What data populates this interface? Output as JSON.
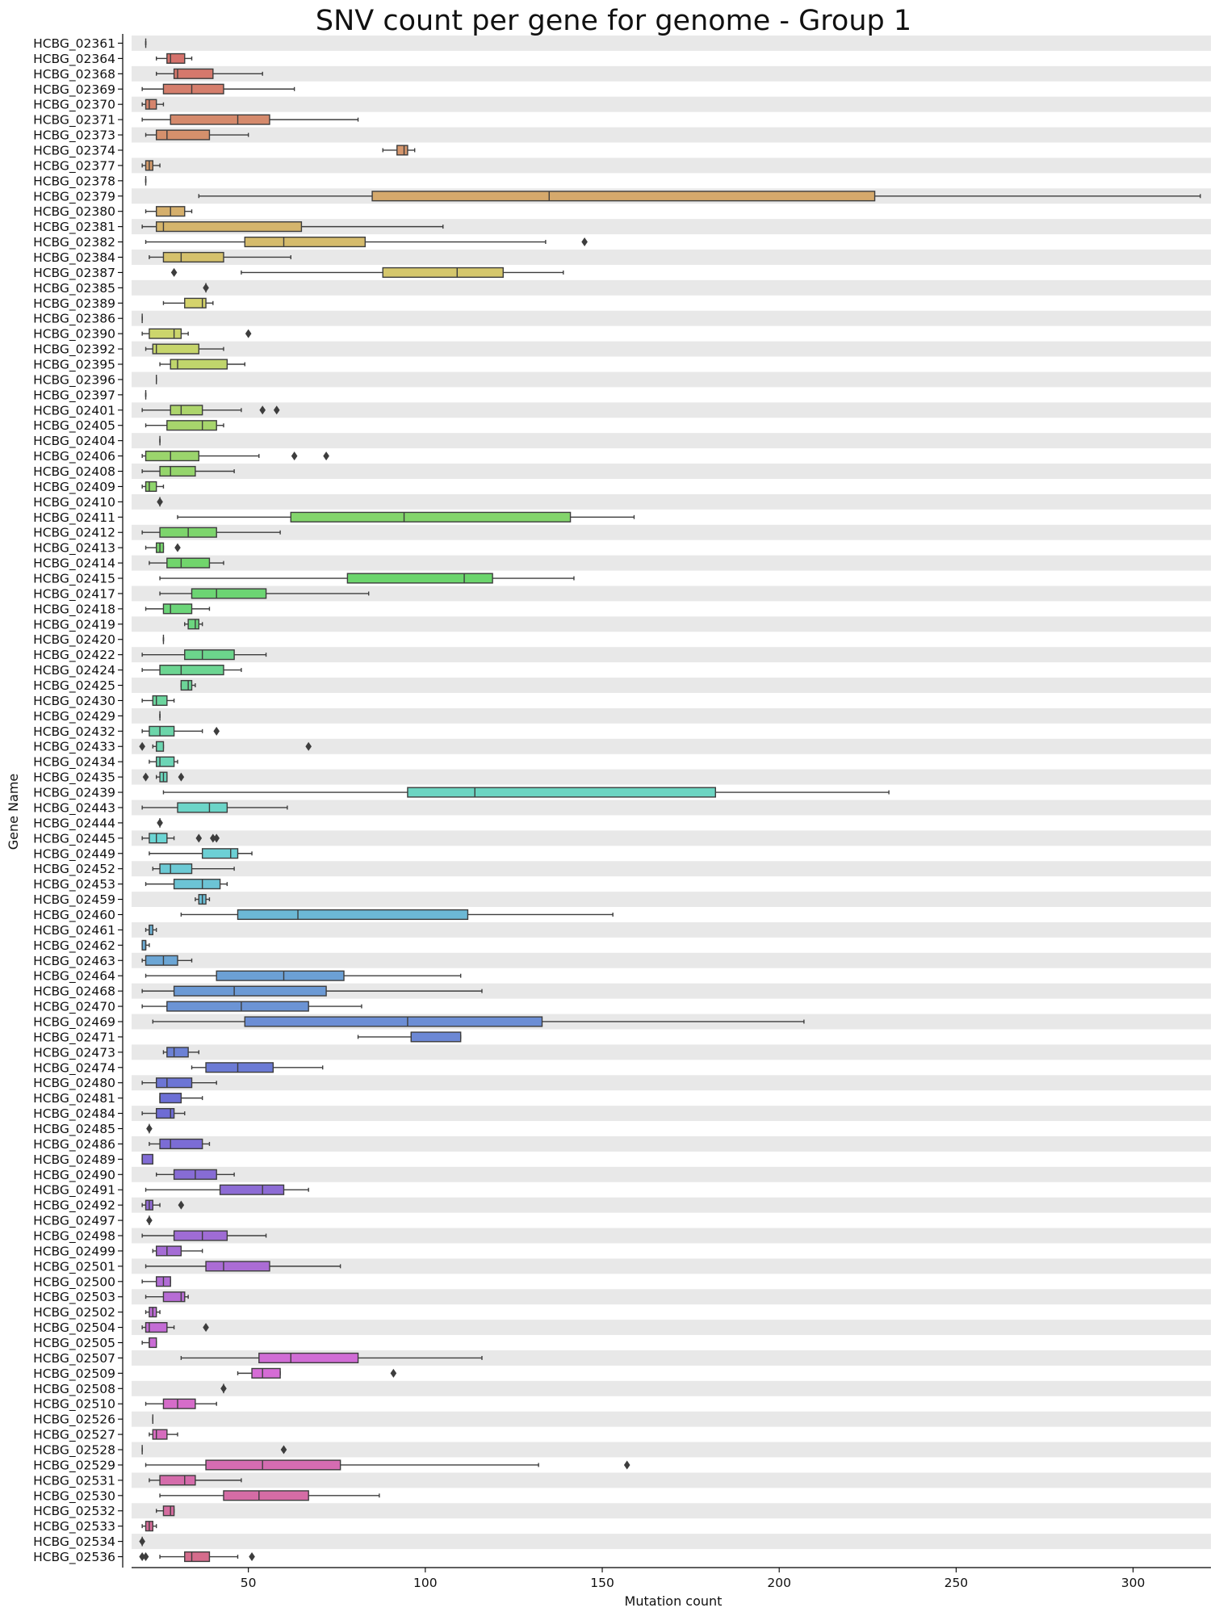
{
  "chart_data": {
    "type": "box",
    "orientation": "horizontal",
    "title": "SNV count per gene for genome - Group 1",
    "xlabel": "Mutation count",
    "ylabel": "Gene Name",
    "xlim": [
      17,
      322
    ],
    "xticks": [
      50,
      100,
      150,
      200,
      250,
      300
    ],
    "grid": false,
    "row_banding": true,
    "categories": [
      {
        "name": "HCBG_02361",
        "wl": 21,
        "q1": 21,
        "med": 21,
        "q3": 21,
        "wh": 21,
        "fliers": []
      },
      {
        "name": "HCBG_02364",
        "wl": 24,
        "q1": 27,
        "med": 28,
        "q3": 32,
        "wh": 34,
        "fliers": []
      },
      {
        "name": "HCBG_02368",
        "wl": 24,
        "q1": 29,
        "med": 30,
        "q3": 40,
        "wh": 54,
        "fliers": []
      },
      {
        "name": "HCBG_02369",
        "wl": 20,
        "q1": 26,
        "med": 34,
        "q3": 43,
        "wh": 63,
        "fliers": []
      },
      {
        "name": "HCBG_02370",
        "wl": 20,
        "q1": 21,
        "med": 22,
        "q3": 24,
        "wh": 26,
        "fliers": []
      },
      {
        "name": "HCBG_02371",
        "wl": 20,
        "q1": 28,
        "med": 47,
        "q3": 56,
        "wh": 81,
        "fliers": []
      },
      {
        "name": "HCBG_02373",
        "wl": 21,
        "q1": 24,
        "med": 27,
        "q3": 39,
        "wh": 50,
        "fliers": []
      },
      {
        "name": "HCBG_02374",
        "wl": 88,
        "q1": 92,
        "med": 94,
        "q3": 95,
        "wh": 97,
        "fliers": []
      },
      {
        "name": "HCBG_02377",
        "wl": 20,
        "q1": 21,
        "med": 22,
        "q3": 23,
        "wh": 25,
        "fliers": []
      },
      {
        "name": "HCBG_02378",
        "wl": 21,
        "q1": 21,
        "med": 21,
        "q3": 21,
        "wh": 21,
        "fliers": []
      },
      {
        "name": "HCBG_02379",
        "wl": 36,
        "q1": 85,
        "med": 135,
        "q3": 227,
        "wh": 319,
        "fliers": []
      },
      {
        "name": "HCBG_02380",
        "wl": 21,
        "q1": 24,
        "med": 28,
        "q3": 32,
        "wh": 34,
        "fliers": []
      },
      {
        "name": "HCBG_02381",
        "wl": 20,
        "q1": 24,
        "med": 26,
        "q3": 65,
        "wh": 105,
        "fliers": []
      },
      {
        "name": "HCBG_02382",
        "wl": 21,
        "q1": 49,
        "med": 60,
        "q3": 83,
        "wh": 134,
        "fliers": [
          145
        ]
      },
      {
        "name": "HCBG_02384",
        "wl": 22,
        "q1": 26,
        "med": 31,
        "q3": 43,
        "wh": 62,
        "fliers": []
      },
      {
        "name": "HCBG_02387",
        "wl": 48,
        "q1": 88,
        "med": 109,
        "q3": 122,
        "wh": 139,
        "fliers": [
          29
        ]
      },
      {
        "name": "HCBG_02385",
        "wl": 38,
        "q1": 38,
        "med": 38,
        "q3": 38,
        "wh": 38,
        "fliers": [
          38
        ]
      },
      {
        "name": "HCBG_02389",
        "wl": 26,
        "q1": 32,
        "med": 37,
        "q3": 38,
        "wh": 40,
        "fliers": []
      },
      {
        "name": "HCBG_02386",
        "wl": 20,
        "q1": 20,
        "med": 20,
        "q3": 20,
        "wh": 20,
        "fliers": []
      },
      {
        "name": "HCBG_02390",
        "wl": 20,
        "q1": 22,
        "med": 29,
        "q3": 31,
        "wh": 33,
        "fliers": [
          50
        ]
      },
      {
        "name": "HCBG_02392",
        "wl": 21,
        "q1": 23,
        "med": 24,
        "q3": 36,
        "wh": 43,
        "fliers": []
      },
      {
        "name": "HCBG_02395",
        "wl": 25,
        "q1": 28,
        "med": 30,
        "q3": 44,
        "wh": 49,
        "fliers": []
      },
      {
        "name": "HCBG_02396",
        "wl": 24,
        "q1": 24,
        "med": 24,
        "q3": 24,
        "wh": 24,
        "fliers": []
      },
      {
        "name": "HCBG_02397",
        "wl": 21,
        "q1": 21,
        "med": 21,
        "q3": 21,
        "wh": 21,
        "fliers": []
      },
      {
        "name": "HCBG_02401",
        "wl": 20,
        "q1": 28,
        "med": 31,
        "q3": 37,
        "wh": 48,
        "fliers": [
          54,
          58
        ]
      },
      {
        "name": "HCBG_02405",
        "wl": 21,
        "q1": 27,
        "med": 37,
        "q3": 41,
        "wh": 43,
        "fliers": []
      },
      {
        "name": "HCBG_02404",
        "wl": 25,
        "q1": 25,
        "med": 25,
        "q3": 25,
        "wh": 25,
        "fliers": []
      },
      {
        "name": "HCBG_02406",
        "wl": 20,
        "q1": 21,
        "med": 28,
        "q3": 36,
        "wh": 53,
        "fliers": [
          63,
          72
        ]
      },
      {
        "name": "HCBG_02408",
        "wl": 20,
        "q1": 25,
        "med": 28,
        "q3": 35,
        "wh": 46,
        "fliers": []
      },
      {
        "name": "HCBG_02409",
        "wl": 20,
        "q1": 21,
        "med": 22,
        "q3": 24,
        "wh": 26,
        "fliers": []
      },
      {
        "name": "HCBG_02410",
        "wl": 25,
        "q1": 25,
        "med": 25,
        "q3": 25,
        "wh": 25,
        "fliers": [
          25
        ]
      },
      {
        "name": "HCBG_02411",
        "wl": 30,
        "q1": 62,
        "med": 94,
        "q3": 141,
        "wh": 159,
        "fliers": []
      },
      {
        "name": "HCBG_02412",
        "wl": 20,
        "q1": 25,
        "med": 33,
        "q3": 41,
        "wh": 59,
        "fliers": []
      },
      {
        "name": "HCBG_02413",
        "wl": 21,
        "q1": 24,
        "med": 25,
        "q3": 26,
        "wh": 26,
        "fliers": [
          30
        ]
      },
      {
        "name": "HCBG_02414",
        "wl": 22,
        "q1": 27,
        "med": 31,
        "q3": 39,
        "wh": 43,
        "fliers": []
      },
      {
        "name": "HCBG_02415",
        "wl": 25,
        "q1": 78,
        "med": 111,
        "q3": 119,
        "wh": 142,
        "fliers": []
      },
      {
        "name": "HCBG_02417",
        "wl": 25,
        "q1": 34,
        "med": 41,
        "q3": 55,
        "wh": 84,
        "fliers": []
      },
      {
        "name": "HCBG_02418",
        "wl": 21,
        "q1": 26,
        "med": 28,
        "q3": 34,
        "wh": 39,
        "fliers": []
      },
      {
        "name": "HCBG_02419",
        "wl": 32,
        "q1": 33,
        "med": 35,
        "q3": 36,
        "wh": 37,
        "fliers": []
      },
      {
        "name": "HCBG_02420",
        "wl": 26,
        "q1": 26,
        "med": 26,
        "q3": 26,
        "wh": 26,
        "fliers": []
      },
      {
        "name": "HCBG_02422",
        "wl": 20,
        "q1": 32,
        "med": 37,
        "q3": 46,
        "wh": 55,
        "fliers": []
      },
      {
        "name": "HCBG_02424",
        "wl": 20,
        "q1": 25,
        "med": 31,
        "q3": 43,
        "wh": 48,
        "fliers": []
      },
      {
        "name": "HCBG_02425",
        "wl": 31,
        "q1": 31,
        "med": 33,
        "q3": 34,
        "wh": 35,
        "fliers": []
      },
      {
        "name": "HCBG_02430",
        "wl": 20,
        "q1": 23,
        "med": 24,
        "q3": 27,
        "wh": 29,
        "fliers": []
      },
      {
        "name": "HCBG_02429",
        "wl": 25,
        "q1": 25,
        "med": 25,
        "q3": 25,
        "wh": 25,
        "fliers": []
      },
      {
        "name": "HCBG_02432",
        "wl": 20,
        "q1": 22,
        "med": 25,
        "q3": 29,
        "wh": 37,
        "fliers": [
          41
        ]
      },
      {
        "name": "HCBG_02433",
        "wl": 23,
        "q1": 24,
        "med": 24,
        "q3": 26,
        "wh": 26,
        "fliers": [
          20,
          67
        ]
      },
      {
        "name": "HCBG_02434",
        "wl": 22,
        "q1": 24,
        "med": 25,
        "q3": 29,
        "wh": 30,
        "fliers": []
      },
      {
        "name": "HCBG_02435",
        "wl": 24,
        "q1": 25,
        "med": 26,
        "q3": 27,
        "wh": 27,
        "fliers": [
          21,
          31
        ]
      },
      {
        "name": "HCBG_02439",
        "wl": 26,
        "q1": 95,
        "med": 114,
        "q3": 182,
        "wh": 231,
        "fliers": []
      },
      {
        "name": "HCBG_02443",
        "wl": 20,
        "q1": 30,
        "med": 39,
        "q3": 44,
        "wh": 61,
        "fliers": []
      },
      {
        "name": "HCBG_02444",
        "wl": 25,
        "q1": 25,
        "med": 25,
        "q3": 25,
        "wh": 25,
        "fliers": [
          25
        ]
      },
      {
        "name": "HCBG_02445",
        "wl": 20,
        "q1": 22,
        "med": 24,
        "q3": 27,
        "wh": 29,
        "fliers": [
          36,
          40,
          41
        ]
      },
      {
        "name": "HCBG_02449",
        "wl": 22,
        "q1": 37,
        "med": 45,
        "q3": 47,
        "wh": 51,
        "fliers": []
      },
      {
        "name": "HCBG_02452",
        "wl": 23,
        "q1": 25,
        "med": 28,
        "q3": 34,
        "wh": 46,
        "fliers": []
      },
      {
        "name": "HCBG_02453",
        "wl": 21,
        "q1": 29,
        "med": 37,
        "q3": 42,
        "wh": 44,
        "fliers": []
      },
      {
        "name": "HCBG_02459",
        "wl": 35,
        "q1": 36,
        "med": 37,
        "q3": 38,
        "wh": 39,
        "fliers": []
      },
      {
        "name": "HCBG_02460",
        "wl": 31,
        "q1": 47,
        "med": 64,
        "q3": 112,
        "wh": 153,
        "fliers": []
      },
      {
        "name": "HCBG_02461",
        "wl": 21,
        "q1": 22,
        "med": 22,
        "q3": 23,
        "wh": 24,
        "fliers": []
      },
      {
        "name": "HCBG_02462",
        "wl": 20,
        "q1": 20,
        "med": 21,
        "q3": 21,
        "wh": 22,
        "fliers": []
      },
      {
        "name": "HCBG_02463",
        "wl": 20,
        "q1": 21,
        "med": 26,
        "q3": 30,
        "wh": 34,
        "fliers": []
      },
      {
        "name": "HCBG_02464",
        "wl": 21,
        "q1": 41,
        "med": 60,
        "q3": 77,
        "wh": 110,
        "fliers": []
      },
      {
        "name": "HCBG_02468",
        "wl": 20,
        "q1": 29,
        "med": 46,
        "q3": 72,
        "wh": 116,
        "fliers": []
      },
      {
        "name": "HCBG_02470",
        "wl": 20,
        "q1": 27,
        "med": 48,
        "q3": 67,
        "wh": 82,
        "fliers": []
      },
      {
        "name": "HCBG_02469",
        "wl": 23,
        "q1": 49,
        "med": 95,
        "q3": 133,
        "wh": 207,
        "fliers": []
      },
      {
        "name": "HCBG_02471",
        "wl": 81,
        "q1": 96,
        "med": 96,
        "q3": 110,
        "wh": 110,
        "fliers": []
      },
      {
        "name": "HCBG_02473",
        "wl": 26,
        "q1": 27,
        "med": 29,
        "q3": 33,
        "wh": 36,
        "fliers": []
      },
      {
        "name": "HCBG_02474",
        "wl": 34,
        "q1": 38,
        "med": 47,
        "q3": 57,
        "wh": 71,
        "fliers": []
      },
      {
        "name": "HCBG_02480",
        "wl": 20,
        "q1": 24,
        "med": 27,
        "q3": 34,
        "wh": 41,
        "fliers": []
      },
      {
        "name": "HCBG_02481",
        "wl": 25,
        "q1": 25,
        "med": 25,
        "q3": 31,
        "wh": 37,
        "fliers": []
      },
      {
        "name": "HCBG_02484",
        "wl": 20,
        "q1": 24,
        "med": 28,
        "q3": 29,
        "wh": 32,
        "fliers": []
      },
      {
        "name": "HCBG_02485",
        "wl": 22,
        "q1": 22,
        "med": 22,
        "q3": 22,
        "wh": 22,
        "fliers": [
          22
        ]
      },
      {
        "name": "HCBG_02486",
        "wl": 22,
        "q1": 25,
        "med": 28,
        "q3": 37,
        "wh": 39,
        "fliers": []
      },
      {
        "name": "HCBG_02489",
        "wl": 20,
        "q1": 20,
        "med": 20,
        "q3": 23,
        "wh": 23,
        "fliers": []
      },
      {
        "name": "HCBG_02490",
        "wl": 24,
        "q1": 29,
        "med": 35,
        "q3": 41,
        "wh": 46,
        "fliers": []
      },
      {
        "name": "HCBG_02491",
        "wl": 21,
        "q1": 42,
        "med": 54,
        "q3": 60,
        "wh": 67,
        "fliers": []
      },
      {
        "name": "HCBG_02492",
        "wl": 20,
        "q1": 21,
        "med": 22,
        "q3": 23,
        "wh": 25,
        "fliers": [
          31
        ]
      },
      {
        "name": "HCBG_02497",
        "wl": 22,
        "q1": 22,
        "med": 22,
        "q3": 22,
        "wh": 22,
        "fliers": [
          22
        ]
      },
      {
        "name": "HCBG_02498",
        "wl": 20,
        "q1": 29,
        "med": 37,
        "q3": 44,
        "wh": 55,
        "fliers": []
      },
      {
        "name": "HCBG_02499",
        "wl": 23,
        "q1": 24,
        "med": 27,
        "q3": 31,
        "wh": 37,
        "fliers": []
      },
      {
        "name": "HCBG_02501",
        "wl": 21,
        "q1": 38,
        "med": 43,
        "q3": 56,
        "wh": 76,
        "fliers": []
      },
      {
        "name": "HCBG_02500",
        "wl": 20,
        "q1": 24,
        "med": 26,
        "q3": 28,
        "wh": 28,
        "fliers": []
      },
      {
        "name": "HCBG_02503",
        "wl": 21,
        "q1": 26,
        "med": 31,
        "q3": 32,
        "wh": 33,
        "fliers": []
      },
      {
        "name": "HCBG_02502",
        "wl": 21,
        "q1": 22,
        "med": 23,
        "q3": 24,
        "wh": 25,
        "fliers": []
      },
      {
        "name": "HCBG_02504",
        "wl": 20,
        "q1": 21,
        "med": 22,
        "q3": 27,
        "wh": 29,
        "fliers": [
          38
        ]
      },
      {
        "name": "HCBG_02505",
        "wl": 20,
        "q1": 22,
        "med": 22,
        "q3": 24,
        "wh": 24,
        "fliers": []
      },
      {
        "name": "HCBG_02507",
        "wl": 31,
        "q1": 53,
        "med": 62,
        "q3": 81,
        "wh": 116,
        "fliers": []
      },
      {
        "name": "HCBG_02509",
        "wl": 47,
        "q1": 51,
        "med": 54,
        "q3": 59,
        "wh": 59,
        "fliers": [
          91
        ]
      },
      {
        "name": "HCBG_02508",
        "wl": 43,
        "q1": 43,
        "med": 43,
        "q3": 43,
        "wh": 43,
        "fliers": [
          43
        ]
      },
      {
        "name": "HCBG_02510",
        "wl": 21,
        "q1": 26,
        "med": 30,
        "q3": 35,
        "wh": 41,
        "fliers": []
      },
      {
        "name": "HCBG_02526",
        "wl": 23,
        "q1": 23,
        "med": 23,
        "q3": 23,
        "wh": 23,
        "fliers": []
      },
      {
        "name": "HCBG_02527",
        "wl": 22,
        "q1": 23,
        "med": 24,
        "q3": 27,
        "wh": 30,
        "fliers": []
      },
      {
        "name": "HCBG_02528",
        "wl": 20,
        "q1": 20,
        "med": 20,
        "q3": 20,
        "wh": 20,
        "fliers": [
          60
        ]
      },
      {
        "name": "HCBG_02529",
        "wl": 21,
        "q1": 38,
        "med": 54,
        "q3": 76,
        "wh": 132,
        "fliers": [
          157
        ]
      },
      {
        "name": "HCBG_02531",
        "wl": 22,
        "q1": 25,
        "med": 32,
        "q3": 35,
        "wh": 48,
        "fliers": []
      },
      {
        "name": "HCBG_02530",
        "wl": 25,
        "q1": 43,
        "med": 53,
        "q3": 67,
        "wh": 87,
        "fliers": []
      },
      {
        "name": "HCBG_02532",
        "wl": 24,
        "q1": 26,
        "med": 28,
        "q3": 29,
        "wh": 29,
        "fliers": []
      },
      {
        "name": "HCBG_02533",
        "wl": 20,
        "q1": 21,
        "med": 22,
        "q3": 23,
        "wh": 24,
        "fliers": []
      },
      {
        "name": "HCBG_02534",
        "wl": 20,
        "q1": 20,
        "med": 20,
        "q3": 20,
        "wh": 20,
        "fliers": [
          20
        ]
      },
      {
        "name": "HCBG_02536",
        "wl": 25,
        "q1": 32,
        "med": 34,
        "q3": 39,
        "wh": 47,
        "fliers": [
          20,
          21,
          51
        ]
      }
    ]
  }
}
